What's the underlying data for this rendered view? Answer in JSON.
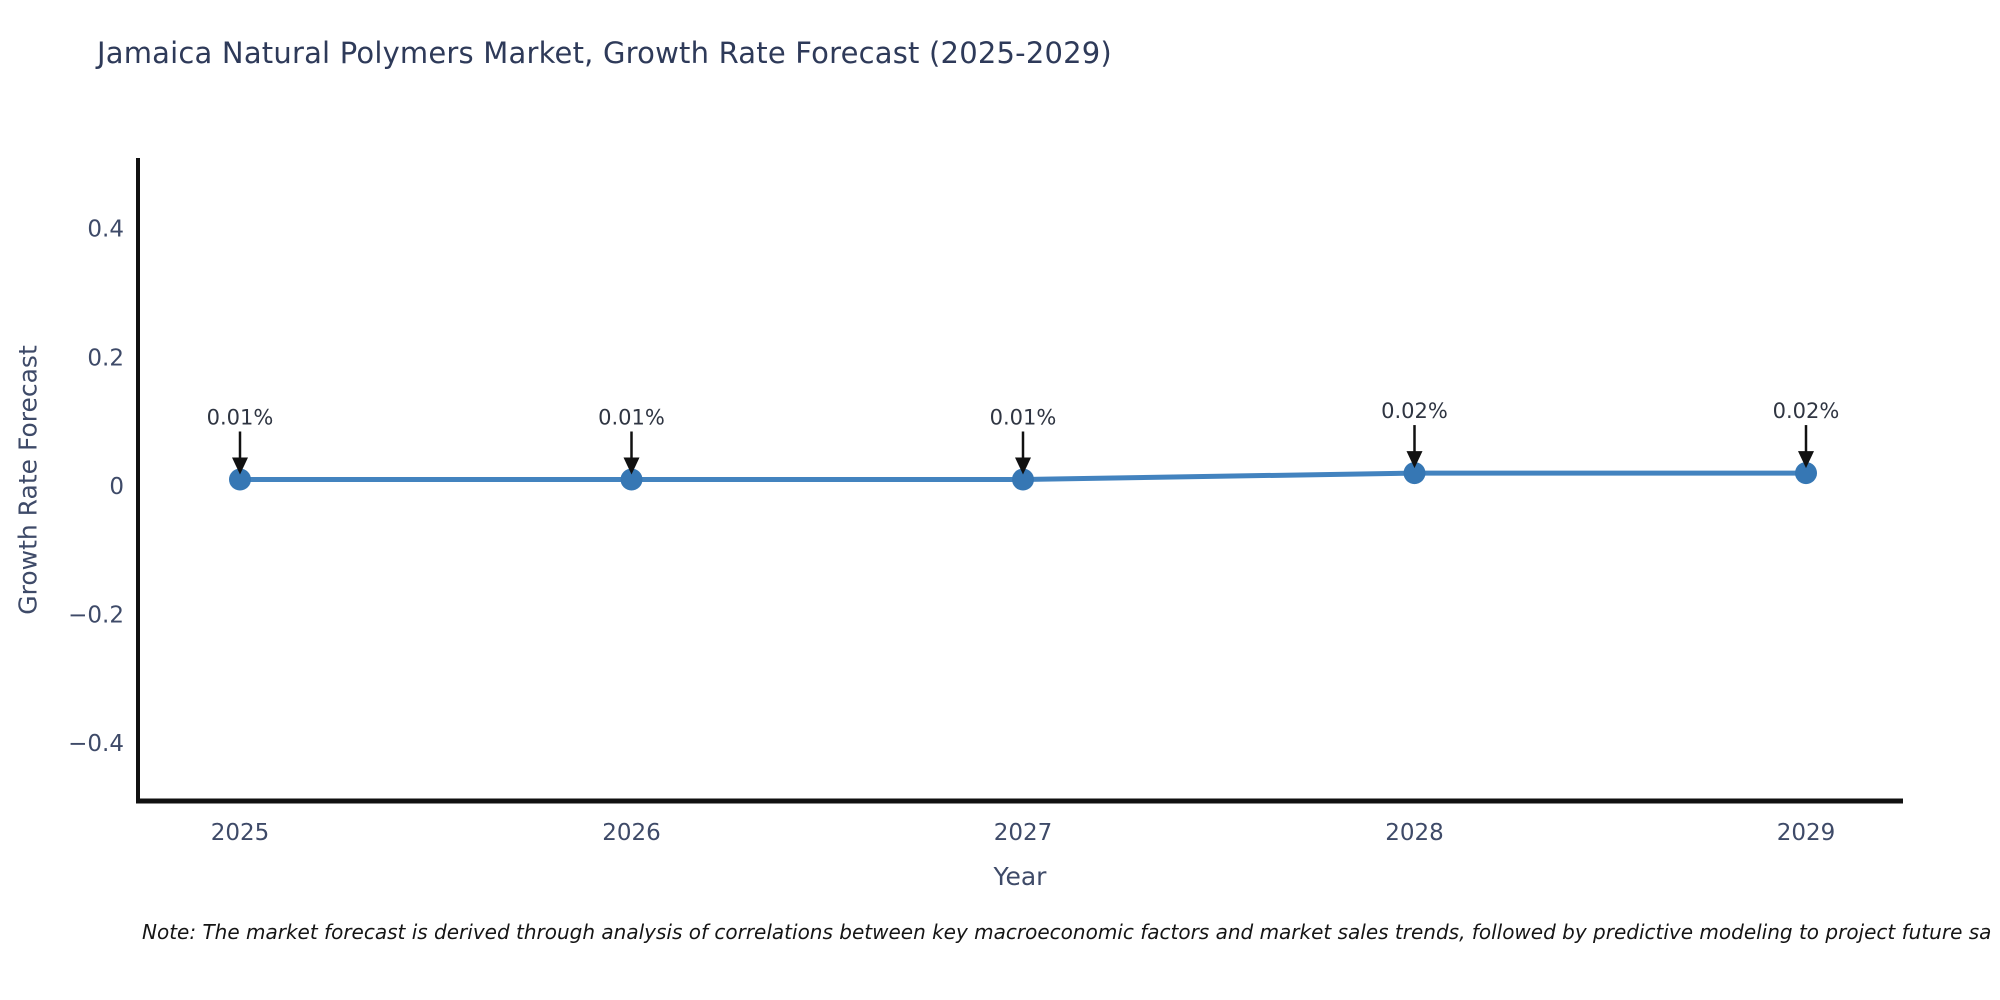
{
  "title": "Jamaica Natural Polymers Market, Growth Rate Forecast (2025-2029)",
  "note": "Note: The market forecast is derived through analysis of correlations between key macroeconomic factors and market sales trends, followed by predictive modeling to project future sa",
  "chart_data": {
    "type": "line",
    "title": "Jamaica Natural Polymers Market, Growth Rate Forecast (2025-2029)",
    "x": [
      2025,
      2026,
      2027,
      2028,
      2029
    ],
    "values": [
      0.01,
      0.01,
      0.01,
      0.02,
      0.02
    ],
    "point_labels": [
      "0.01%",
      "0.01%",
      "0.01%",
      "0.02%",
      "0.02%"
    ],
    "xlabel": "Year",
    "ylabel": "Growth Rate Forecast",
    "yticks": [
      0.4,
      0.2,
      0,
      -0.2,
      -0.4
    ],
    "ytick_labels": [
      "0.4",
      "0.2",
      "0",
      "−0.2",
      "−0.4"
    ],
    "ylim": [
      -0.49,
      0.51
    ],
    "grid": false,
    "legend": "none",
    "line_color": "#4383bf",
    "marker_color": "#3677b4",
    "axis_color": "#111111",
    "arrow_color": "#111111",
    "annotation_color": "#2f3542",
    "tick_color": "#3e4a68",
    "title_color": "#2e3a59"
  }
}
